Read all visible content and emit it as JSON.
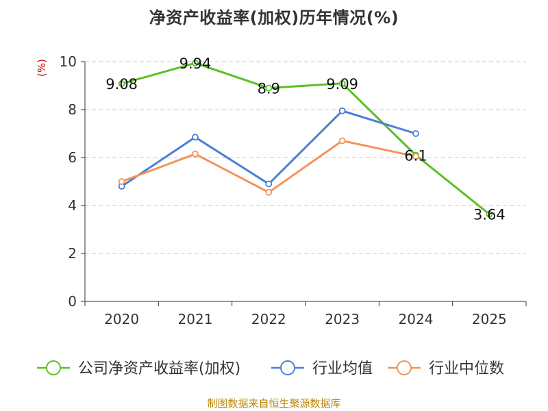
{
  "title": "净资产收益率(加权)历年情况(%)",
  "y_unit_label": "(%)",
  "source": "制图数据来自恒生聚源数据库",
  "chart_data": {
    "type": "line",
    "title": "净资产收益率(加权)历年情况(%)",
    "xlabel": "",
    "ylabel": "(%)",
    "categories": [
      "2020",
      "2021",
      "2022",
      "2023",
      "2024",
      "2025"
    ],
    "ylim": [
      0,
      10
    ],
    "yticks": [
      0,
      2,
      4,
      6,
      8,
      10
    ],
    "grid": true,
    "legend_position": "bottom",
    "series": [
      {
        "name": "公司净资产收益率(加权)",
        "color": "#5ac025",
        "values": [
          9.08,
          9.94,
          8.9,
          9.09,
          6.1,
          3.64
        ],
        "labels": [
          "9.08",
          "9.94",
          "8.9",
          "9.09",
          "6.1",
          "3.64"
        ]
      },
      {
        "name": "行业均值",
        "color": "#4a7fd6",
        "values": [
          4.8,
          6.85,
          4.9,
          7.95,
          7.0,
          null
        ]
      },
      {
        "name": "行业中位数",
        "color": "#f5925c",
        "values": [
          5.0,
          6.15,
          4.55,
          6.7,
          6.05,
          null
        ]
      }
    ]
  }
}
